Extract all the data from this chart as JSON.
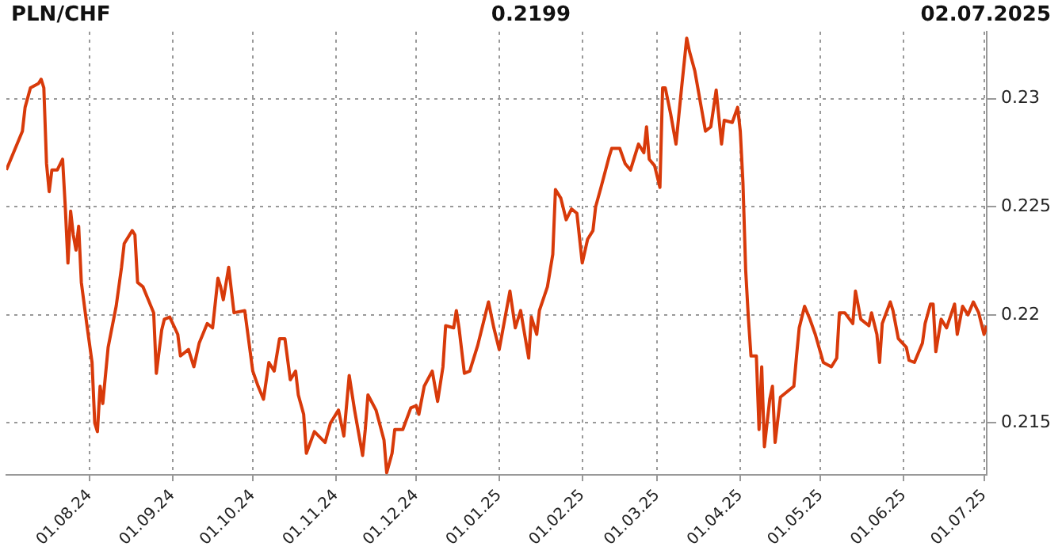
{
  "chart_data": {
    "type": "line",
    "title": "PLN/CHF",
    "annotations": [
      "0.2199",
      "02.07.2025"
    ],
    "x": [
      "2024-07-01",
      "2024-07-04",
      "2024-07-07",
      "2024-07-08",
      "2024-07-10",
      "2024-07-13",
      "2024-07-14",
      "2024-07-15",
      "2024-07-16",
      "2024-07-17",
      "2024-07-18",
      "2024-07-20",
      "2024-07-22",
      "2024-07-23",
      "2024-07-24",
      "2024-07-25",
      "2024-07-26",
      "2024-07-27",
      "2024-07-28",
      "2024-07-29",
      "2024-07-31",
      "2024-08-02",
      "2024-08-03",
      "2024-08-04",
      "2024-08-05",
      "2024-08-06",
      "2024-08-08",
      "2024-08-11",
      "2024-08-13",
      "2024-08-14",
      "2024-08-17",
      "2024-08-18",
      "2024-08-19",
      "2024-08-21",
      "2024-08-23",
      "2024-08-25",
      "2024-08-26",
      "2024-08-28",
      "2024-08-29",
      "2024-08-31",
      "2024-09-03",
      "2024-09-04",
      "2024-09-07",
      "2024-09-09",
      "2024-09-11",
      "2024-09-14",
      "2024-09-16",
      "2024-09-18",
      "2024-09-19",
      "2024-09-20",
      "2024-09-22",
      "2024-09-24",
      "2024-09-28",
      "2024-10-01",
      "2024-10-03",
      "2024-10-05",
      "2024-10-07",
      "2024-10-09",
      "2024-10-11",
      "2024-10-13",
      "2024-10-15",
      "2024-10-17",
      "2024-10-18",
      "2024-10-20",
      "2024-10-21",
      "2024-10-24",
      "2024-10-28",
      "2024-10-30",
      "2024-11-02",
      "2024-11-04",
      "2024-11-06",
      "2024-11-08",
      "2024-11-11",
      "2024-11-12",
      "2024-11-13",
      "2024-11-16",
      "2024-11-19",
      "2024-11-20",
      "2024-11-22",
      "2024-11-23",
      "2024-11-26",
      "2024-11-29",
      "2024-12-01",
      "2024-12-02",
      "2024-12-04",
      "2024-12-07",
      "2024-12-09",
      "2024-12-11",
      "2024-12-12",
      "2024-12-15",
      "2024-12-16",
      "2024-12-17",
      "2024-12-19",
      "2024-12-21",
      "2024-12-24",
      "2024-12-28",
      "2024-12-30",
      "2025-01-01",
      "2025-01-05",
      "2025-01-07",
      "2025-01-09",
      "2025-01-12",
      "2025-01-13",
      "2025-01-15",
      "2025-01-16",
      "2025-01-19",
      "2025-01-21",
      "2025-01-22",
      "2025-01-24",
      "2025-01-26",
      "2025-01-28",
      "2025-01-30",
      "2025-02-01",
      "2025-02-03",
      "2025-02-05",
      "2025-02-06",
      "2025-02-08",
      "2025-02-11",
      "2025-02-12",
      "2025-02-15",
      "2025-02-17",
      "2025-02-19",
      "2025-02-22",
      "2025-02-24",
      "2025-02-25",
      "2025-02-26",
      "2025-02-28",
      "2025-03-02",
      "2025-03-03",
      "2025-03-04",
      "2025-03-06",
      "2025-03-08",
      "2025-03-10",
      "2025-03-12",
      "2025-03-13",
      "2025-03-15",
      "2025-03-17",
      "2025-03-19",
      "2025-03-21",
      "2025-03-23",
      "2025-03-25",
      "2025-03-26",
      "2025-03-29",
      "2025-03-31",
      "2025-04-01",
      "2025-04-02",
      "2025-04-03",
      "2025-04-04",
      "2025-04-05",
      "2025-04-07",
      "2025-04-08",
      "2025-04-09",
      "2025-04-10",
      "2025-04-12",
      "2025-04-13",
      "2025-04-14",
      "2025-04-16",
      "2025-04-19",
      "2025-04-21",
      "2025-04-22",
      "2025-04-23",
      "2025-04-25",
      "2025-04-27",
      "2025-04-29",
      "2025-05-02",
      "2025-05-05",
      "2025-05-07",
      "2025-05-08",
      "2025-05-10",
      "2025-05-13",
      "2025-05-14",
      "2025-05-16",
      "2025-05-19",
      "2025-05-20",
      "2025-05-22",
      "2025-05-23",
      "2025-05-24",
      "2025-05-27",
      "2025-05-28",
      "2025-05-30",
      "2025-06-02",
      "2025-06-03",
      "2025-06-05",
      "2025-06-08",
      "2025-06-09",
      "2025-06-11",
      "2025-06-12",
      "2025-06-13",
      "2025-06-15",
      "2025-06-17",
      "2025-06-20",
      "2025-06-21",
      "2025-06-23",
      "2025-06-25",
      "2025-06-27",
      "2025-06-29",
      "2025-07-01",
      "2025-07-02"
    ],
    "series": [
      {
        "color": "#d83a0a",
        "values": [
          0.2267,
          0.2276,
          0.2285,
          0.2296,
          0.2305,
          0.2307,
          0.2309,
          0.2305,
          0.227,
          0.2257,
          0.2267,
          0.2267,
          0.2272,
          0.225,
          0.2224,
          0.2248,
          0.2237,
          0.223,
          0.2241,
          0.2215,
          0.2196,
          0.2178,
          0.215,
          0.2146,
          0.2167,
          0.2159,
          0.2185,
          0.2204,
          0.2222,
          0.2233,
          0.2239,
          0.2237,
          0.2215,
          0.2213,
          0.2207,
          0.2201,
          0.2173,
          0.2193,
          0.2198,
          0.2199,
          0.2191,
          0.2181,
          0.2184,
          0.2176,
          0.2187,
          0.2196,
          0.2194,
          0.2217,
          0.2213,
          0.2207,
          0.2222,
          0.2201,
          0.2202,
          0.2174,
          0.2167,
          0.2161,
          0.2178,
          0.2174,
          0.2189,
          0.2189,
          0.217,
          0.2174,
          0.2163,
          0.2154,
          0.2136,
          0.2146,
          0.2141,
          0.215,
          0.2156,
          0.2144,
          0.2172,
          0.2156,
          0.2135,
          0.2147,
          0.2163,
          0.2156,
          0.2142,
          0.2127,
          0.2136,
          0.2147,
          0.2147,
          0.2157,
          0.2158,
          0.2154,
          0.2167,
          0.2174,
          0.216,
          0.2176,
          0.2195,
          0.2194,
          0.2202,
          0.2194,
          0.2173,
          0.2174,
          0.2186,
          0.2206,
          0.2194,
          0.2184,
          0.2211,
          0.2194,
          0.2202,
          0.218,
          0.2199,
          0.2191,
          0.2202,
          0.2213,
          0.2228,
          0.2258,
          0.2254,
          0.2244,
          0.2249,
          0.2247,
          0.2224,
          0.2235,
          0.2239,
          0.225,
          0.2259,
          0.2273,
          0.2277,
          0.2277,
          0.227,
          0.2267,
          0.2279,
          0.2275,
          0.2287,
          0.2272,
          0.2269,
          0.2259,
          0.2305,
          0.2305,
          0.2293,
          0.2279,
          0.2304,
          0.2328,
          0.2322,
          0.2313,
          0.2299,
          0.2285,
          0.2287,
          0.2304,
          0.2279,
          0.229,
          0.2289,
          0.2296,
          0.2285,
          0.2261,
          0.2221,
          0.2199,
          0.2181,
          0.2181,
          0.2147,
          0.2176,
          0.2139,
          0.2161,
          0.2167,
          0.2141,
          0.2162,
          0.2165,
          0.2167,
          0.2181,
          0.2194,
          0.2204,
          0.2198,
          0.2191,
          0.2178,
          0.2176,
          0.218,
          0.2201,
          0.2201,
          0.2196,
          0.2211,
          0.2198,
          0.2195,
          0.2201,
          0.2191,
          0.2178,
          0.2196,
          0.2206,
          0.2202,
          0.2189,
          0.2185,
          0.2179,
          0.2178,
          0.2187,
          0.2196,
          0.2205,
          0.2205,
          0.2183,
          0.2198,
          0.2194,
          0.2205,
          0.2191,
          0.2204,
          0.22,
          0.2206,
          0.2201,
          0.2191,
          0.2195
        ]
      }
    ],
    "xlim": [
      "2024-07-01",
      "2025-07-02"
    ],
    "xticks": [
      {
        "value": "2024-08-01",
        "label": "01.08.24"
      },
      {
        "value": "2024-09-01",
        "label": "01.09.24"
      },
      {
        "value": "2024-10-01",
        "label": "01.10.24"
      },
      {
        "value": "2024-11-01",
        "label": "01.11.24"
      },
      {
        "value": "2024-12-01",
        "label": "01.12.24"
      },
      {
        "value": "2025-01-01",
        "label": "01.01.25"
      },
      {
        "value": "2025-02-01",
        "label": "01.02.25"
      },
      {
        "value": "2025-03-01",
        "label": "01.03.25"
      },
      {
        "value": "2025-04-01",
        "label": "01.04.25"
      },
      {
        "value": "2025-05-01",
        "label": "01.05.25"
      },
      {
        "value": "2025-06-01",
        "label": "01.06.25"
      },
      {
        "value": "2025-07-01",
        "label": "01.07.25"
      }
    ],
    "ylim": [
      0.2126,
      0.2331
    ],
    "yticks": [
      0.215,
      0.22,
      0.225,
      0.23
    ],
    "grid": true,
    "legend": false,
    "marker": "none",
    "line_style": "solid"
  }
}
